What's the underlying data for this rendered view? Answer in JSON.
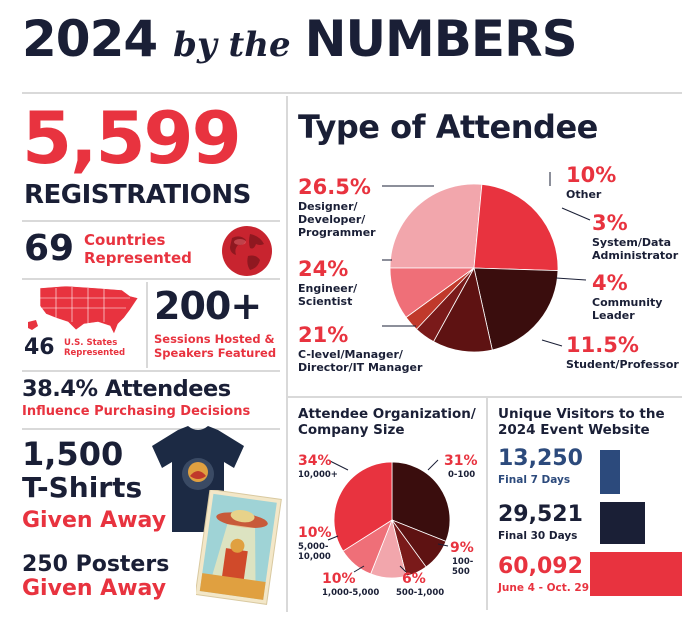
{
  "header": {
    "year": "2024",
    "by_the": "by the",
    "numbers": "NUMBERS"
  },
  "registrations": {
    "value": "5,599",
    "label": "REGISTRATIONS"
  },
  "countries": {
    "value": "69",
    "label_line1": "Countries",
    "label_line2": "Represented"
  },
  "states": {
    "value": "46",
    "label_line1": "U.S. States",
    "label_line2": "Represented"
  },
  "sessions": {
    "value": "200+",
    "label_line1": "Sessions Hosted &",
    "label_line2": "Speakers Featured"
  },
  "attendees_influence": {
    "value": "38.4% Attendees",
    "label": "Influence Purchasing Decisions"
  },
  "tshirts": {
    "value": "1,500",
    "line2": "T-Shirts",
    "label": "Given Away"
  },
  "posters": {
    "value": "250 Posters",
    "label": "Given Away"
  },
  "attendee_type": {
    "title": "Type of Attendee",
    "items": [
      {
        "pct": "26.5%",
        "label_lines": [
          "Designer/",
          "Developer/",
          "Programmer"
        ]
      },
      {
        "pct": "24%",
        "label_lines": [
          "Engineer/",
          "Scientist"
        ]
      },
      {
        "pct": "21%",
        "label_lines": [
          "C-level/Manager/",
          "Director/IT Manager"
        ]
      },
      {
        "pct": "10%",
        "label_lines": [
          "Other"
        ]
      },
      {
        "pct": "3%",
        "label_lines": [
          "System/Data",
          "Administrator"
        ]
      },
      {
        "pct": "4%",
        "label_lines": [
          "Community",
          "Leader"
        ]
      },
      {
        "pct": "11.5%",
        "label_lines": [
          "Student/Professor"
        ]
      }
    ]
  },
  "org_size": {
    "title_line1": "Attendee Organization/",
    "title_line2": "Company Size",
    "items": [
      {
        "pct": "34%",
        "label_lines": [
          "10,000+"
        ]
      },
      {
        "pct": "31%",
        "label_lines": [
          "0-100"
        ]
      },
      {
        "pct": "10%",
        "label_lines": [
          "5,000-",
          "10,000"
        ]
      },
      {
        "pct": "9%",
        "label_lines": [
          "100-",
          "500"
        ]
      },
      {
        "pct": "10%",
        "label_lines": [
          "1,000-5,000"
        ]
      },
      {
        "pct": "6%",
        "label_lines": [
          "500-1,000"
        ]
      }
    ]
  },
  "visitors": {
    "title_line1": "Unique Visitors to the",
    "title_line2": "2024 Event Website",
    "items": [
      {
        "value": "13,250",
        "label": "Final 7 Days",
        "color": "#2c4a7c"
      },
      {
        "value": "29,521",
        "label": "Final 30 Days",
        "color": "#1a1f36"
      },
      {
        "value": "60,092",
        "label": "June 4 - Oct. 29",
        "color": "#e8333f"
      }
    ]
  },
  "chart_data": [
    {
      "type": "pie",
      "title": "Type of Attendee",
      "categories": [
        "Designer/Developer/Programmer",
        "Engineer/Scientist",
        "C-level/Manager/Director/IT Manager",
        "Student/Professor",
        "Community Leader",
        "System/Data Administrator",
        "Other"
      ],
      "values": [
        26.5,
        24,
        21,
        11.5,
        4,
        3,
        10
      ],
      "colors": [
        "#f2a6ac",
        "#e8333f",
        "#3a0d0d",
        "#5e1212",
        "#7a1a1a",
        "#c0392b",
        "#ef6f78"
      ]
    },
    {
      "type": "pie",
      "title": "Attendee Organization/Company Size",
      "categories": [
        "0-100",
        "100-500",
        "500-1,000",
        "1,000-5,000",
        "5,000-10,000",
        "10,000+"
      ],
      "values": [
        31,
        9,
        6,
        10,
        10,
        34
      ],
      "colors": [
        "#3a0d0d",
        "#5e1212",
        "#7a1a1a",
        "#f2a6ac",
        "#ef6f78",
        "#e8333f"
      ]
    },
    {
      "type": "bar",
      "title": "Unique Visitors to the 2024 Event Website",
      "categories": [
        "Final 7 Days",
        "Final 30 Days",
        "June 4 - Oct. 29"
      ],
      "values": [
        13250,
        29521,
        60092
      ]
    }
  ]
}
